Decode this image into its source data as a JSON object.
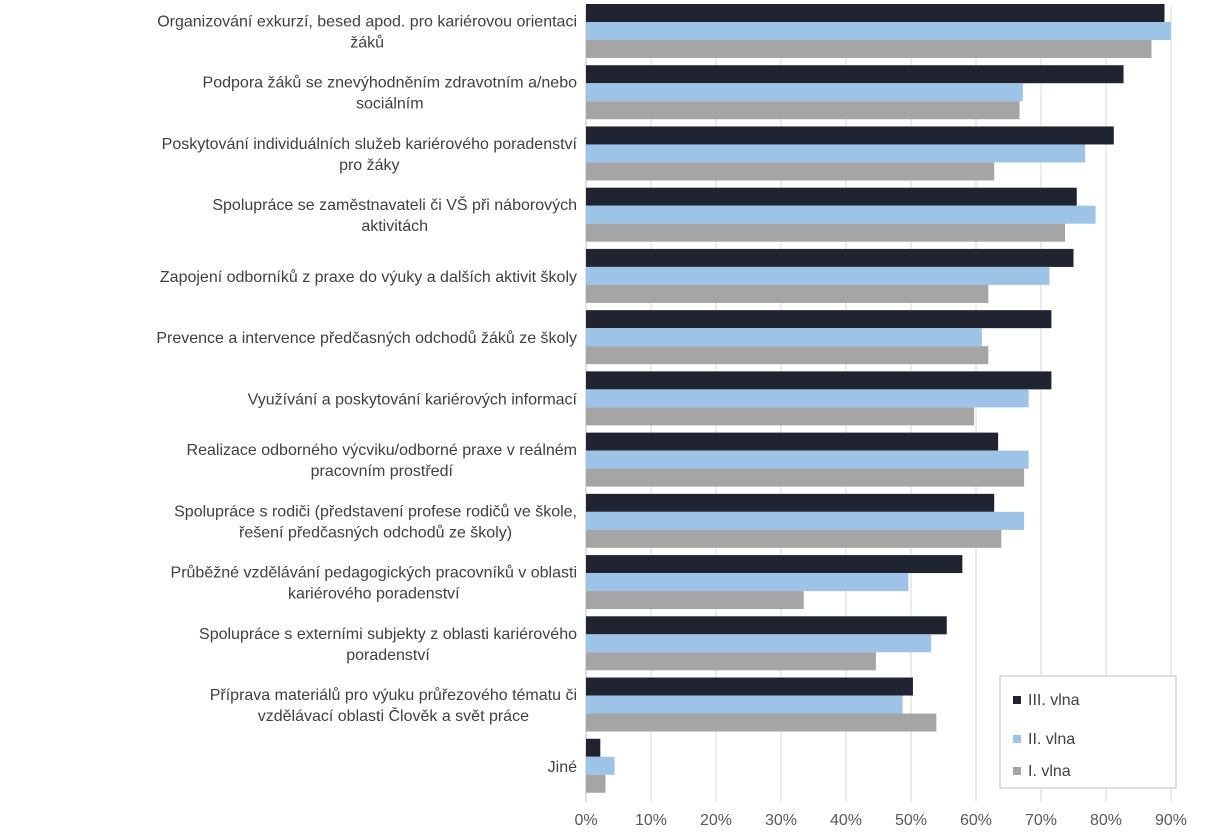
{
  "chart_data": {
    "type": "bar",
    "orientation": "horizontal",
    "title": "",
    "xlabel": "",
    "ylabel": "",
    "xlim": [
      0,
      0.9
    ],
    "x_ticks": [
      "0%",
      "10%",
      "20%",
      "30%",
      "40%",
      "50%",
      "60%",
      "70%",
      "80%",
      "90%"
    ],
    "grid": true,
    "legend_position": "bottom-right",
    "categories": [
      [
        "Organizování exkurzí, besed apod. pro kariérovou orientaci",
        "žáků"
      ],
      [
        "Podpora žáků se znevýhodněním zdravotním a/nebo",
        "sociálním"
      ],
      [
        "Poskytování individuálních služeb kariérového poradenství",
        "pro žáky"
      ],
      [
        "Spolupráce se zaměstnavateli či VŠ při náborových",
        "aktivitách"
      ],
      [
        "Zapojení odborníků z praxe do výuky a dalších aktivit školy"
      ],
      [
        "Prevence a intervence předčasných odchodů žáků ze školy"
      ],
      [
        "Využívání a poskytování kariérových informací"
      ],
      [
        "Realizace odborného výcviku/odborné praxe v reálném",
        "pracovním prostředí"
      ],
      [
        "Spolupráce s rodiči (představení profese rodičů ve škole,",
        "řešení předčasných odchodů ze školy)"
      ],
      [
        "Průběžné vzdělávání pedagogických pracovníků v oblasti",
        "kariérového poradenství"
      ],
      [
        "Spolupráce s externími subjekty z oblasti kariérového",
        "poradenství"
      ],
      [
        "Příprava materiálů pro výuku průřezového tématu či",
        "vzdělávací oblasti Člověk a svět práce"
      ],
      [
        "Jiné"
      ]
    ],
    "series": [
      {
        "name": "III. vlna",
        "color": "#1f2430",
        "values": [
          0.89,
          0.827,
          0.812,
          0.755,
          0.75,
          0.716,
          0.716,
          0.634,
          0.628,
          0.579,
          0.555,
          0.503,
          0.022
        ]
      },
      {
        "name": "II. vlna",
        "color": "#9dc3e6",
        "values": [
          0.9,
          0.672,
          0.768,
          0.784,
          0.713,
          0.609,
          0.681,
          0.681,
          0.674,
          0.496,
          0.531,
          0.487,
          0.044
        ]
      },
      {
        "name": "I. vlna",
        "color": "#a5a5a5",
        "values": [
          0.87,
          0.667,
          0.628,
          0.737,
          0.619,
          0.619,
          0.597,
          0.674,
          0.639,
          0.335,
          0.446,
          0.539,
          0.03
        ]
      }
    ]
  }
}
